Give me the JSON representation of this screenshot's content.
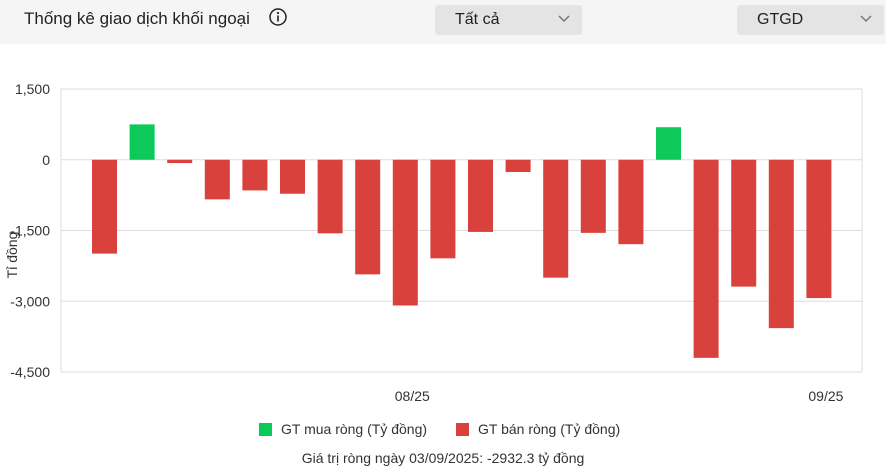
{
  "header": {
    "title": "Thống kê giao dịch khối ngoại",
    "filter_scope": "Tất cả",
    "filter_metric": "GTGD"
  },
  "legend": {
    "buy_label": "GT mua ròng (Tỷ đồng)",
    "sell_label": "GT bán ròng (Tỷ đồng)"
  },
  "footer": {
    "summary": "Giá trị ròng ngày 03/09/2025: -2932.3 tỷ đồng"
  },
  "colors": {
    "buy": "#0dc95a",
    "sell": "#d8413c"
  },
  "chart_data": {
    "type": "bar",
    "ylabel": "Tỉ đồng",
    "ylim": [
      -4500,
      1500
    ],
    "y_ticks": [
      1500,
      0,
      -1500,
      -3000,
      -4500
    ],
    "y_tick_labels": [
      "1,500",
      "0",
      "-1,500",
      "-3,000",
      "-4,500"
    ],
    "x_tick_labels": [
      {
        "label": "08/25",
        "index": 8
      },
      {
        "label": "09/25",
        "index": 19
      }
    ],
    "grid": true,
    "series": [
      {
        "name": "GT mua ròng (Tỷ đồng)",
        "color": "#0dc95a"
      },
      {
        "name": "GT bán ròng (Tỷ đồng)",
        "color": "#d8413c"
      }
    ],
    "values": [
      -1990,
      750,
      -70,
      -840,
      -650,
      -720,
      -1560,
      -2430,
      -3090,
      -2090,
      -1530,
      -260,
      -2500,
      -1550,
      -1790,
      690,
      -4200,
      -2690,
      -3570,
      -2932.3
    ]
  }
}
